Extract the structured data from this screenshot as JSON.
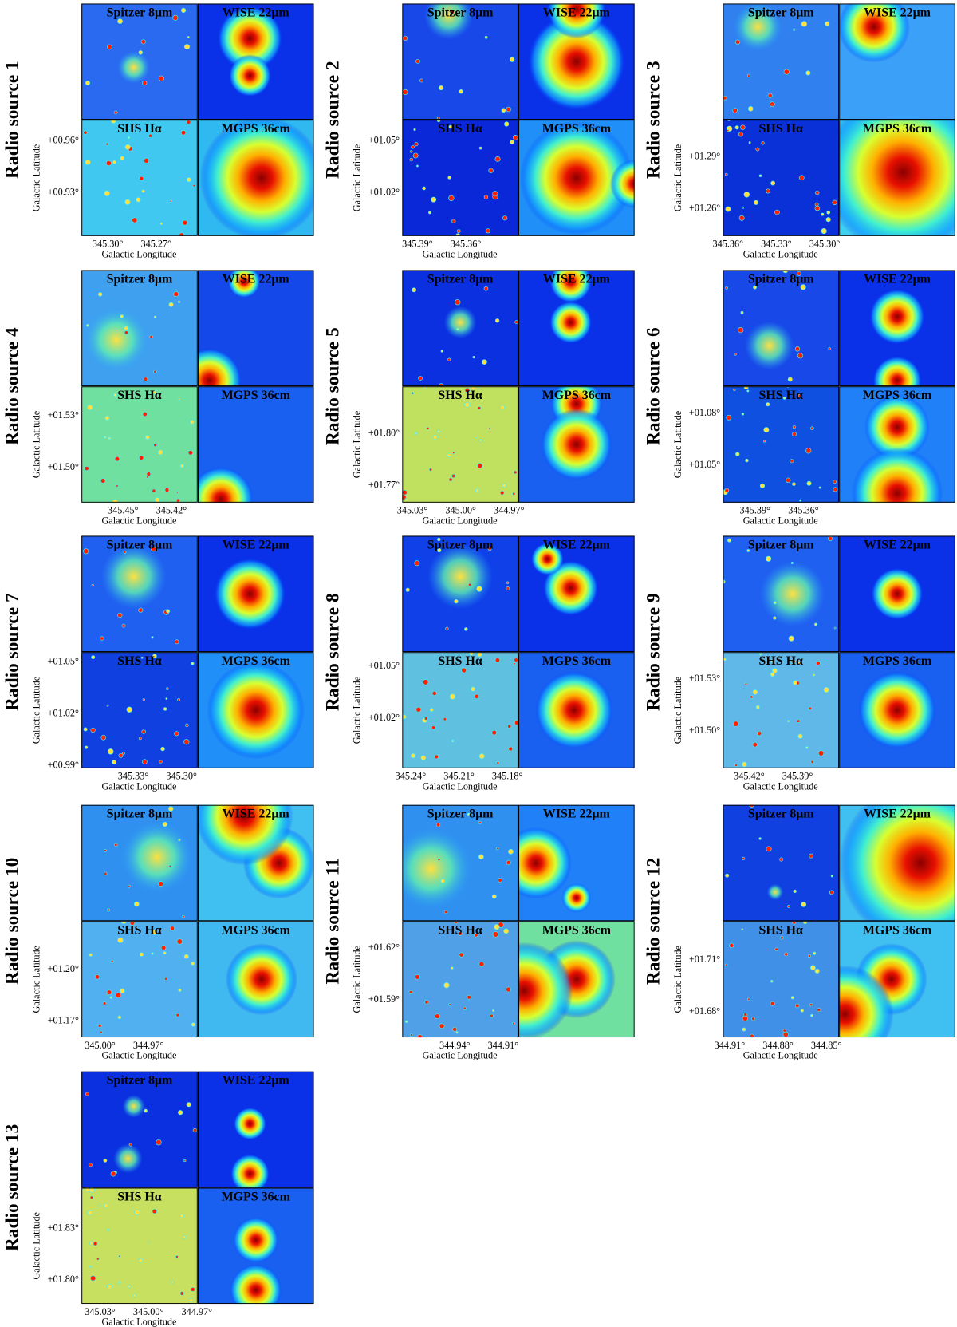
{
  "panel_labels": [
    "Spitzer 8μm",
    "WISE 22μm",
    "SHS Hα",
    "MGPS 36cm"
  ],
  "y_axis_label": "Galactic Latitude",
  "x_axis_label": "Galactic Longitude",
  "sources": [
    {
      "title": "Radio source 1",
      "yticks": [
        "+00.96°",
        "+00.93°"
      ],
      "xticks": [
        "345.30°",
        "345.27°"
      ]
    },
    {
      "title": "Radio source 2",
      "yticks": [
        "+01.05°",
        "+01.02°"
      ],
      "xticks": [
        "345.39°",
        "345.36°"
      ]
    },
    {
      "title": "Radio source 3",
      "yticks": [
        "+01.29°",
        "+01.26°"
      ],
      "xticks": [
        "345.36°",
        "345.33°",
        "345.30°"
      ]
    },
    {
      "title": "Radio source 4",
      "yticks": [
        "+01.53°",
        "+01.50°"
      ],
      "xticks": [
        "345.45°",
        "345.42°"
      ]
    },
    {
      "title": "Radio source 5",
      "yticks": [
        "+01.80°",
        "+01.77°"
      ],
      "xticks": [
        "345.03°",
        "345.00°",
        "344.97°"
      ]
    },
    {
      "title": "Radio source 6",
      "yticks": [
        "+01.08°",
        "+01.05°"
      ],
      "xticks": [
        "345.39°",
        "345.36°"
      ]
    },
    {
      "title": "Radio source 7",
      "yticks": [
        "+01.05°",
        "+01.02°",
        "+00.99°"
      ],
      "xticks": [
        "345.33°",
        "345.30°"
      ]
    },
    {
      "title": "Radio source 8",
      "yticks": [
        "+01.05°",
        "+01.02°"
      ],
      "xticks": [
        "345.24°",
        "345.21°",
        "345.18°"
      ]
    },
    {
      "title": "Radio source 9",
      "yticks": [
        "+01.53°",
        "+01.50°"
      ],
      "xticks": [
        "345.42°",
        "345.39°"
      ]
    },
    {
      "title": "Radio source 10",
      "yticks": [
        "+01.20°",
        "+01.17°"
      ],
      "xticks": [
        "345.00°",
        "344.97°"
      ]
    },
    {
      "title": "Radio source 11",
      "yticks": [
        "+01.62°",
        "+01.59°"
      ],
      "xticks": [
        "344.94°",
        "344.91°"
      ]
    },
    {
      "title": "Radio source 12",
      "yticks": [
        "+01.71°",
        "+01.68°"
      ],
      "xticks": [
        "344.91°",
        "344.88°",
        "344.85°"
      ]
    },
    {
      "title": "Radio source 13",
      "yticks": [
        "+01.83°",
        "+01.80°"
      ],
      "xticks": [
        "345.03°",
        "345.00°",
        "344.97°"
      ]
    }
  ]
}
